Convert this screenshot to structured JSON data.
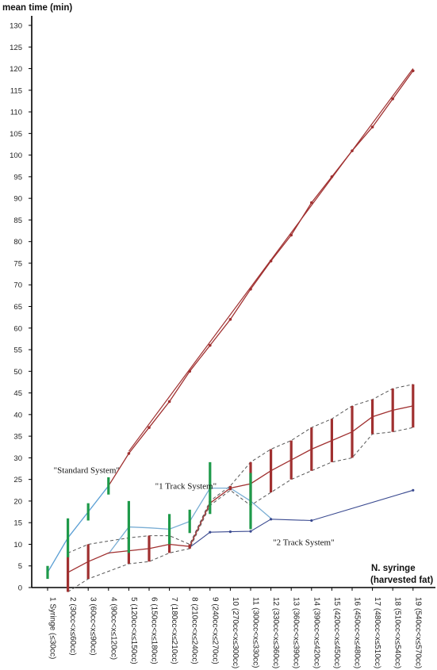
{
  "chart_data": {
    "type": "line",
    "ylabel": "mean time (min)",
    "xlabel": [
      "N. syringe",
      "(harvested fat)"
    ],
    "ylim": [
      0,
      130
    ],
    "yticks": [
      0,
      5,
      10,
      15,
      20,
      25,
      30,
      35,
      40,
      45,
      50,
      55,
      60,
      65,
      70,
      75,
      80,
      85,
      90,
      95,
      100,
      105,
      110,
      115,
      120,
      125,
      130
    ],
    "categories": [
      "1 Syringe (≤30cc)",
      "2 (30cc<x≤60cc)",
      "3 (60cc<x≤90cc)",
      "4 (90cc<x≤120cc)",
      "5 (120cc<x≤150cc)",
      "6 (150cc<x≤180cc)",
      "7 (180cc<x≤210cc)",
      "8 (210cc<x≤240cc)",
      "9 (240cc<x≤270cc)",
      "10 (270cc<x≤300cc)",
      "11 (300cc<x≤330cc)",
      "12 (330cc<x≤360cc)",
      "13 (360cc<x≤390cc)",
      "14 (390cc<x≤420cc)",
      "15 (420cc<x≤450cc)",
      "16 (450cc<x≤480cc)",
      "17 (480cc<x≤510cc)",
      "18 (510cc<x≤540cc)",
      "19 (540cc<x≤570cc)"
    ],
    "annotations": [
      {
        "text": "\"Standard System\"",
        "x": 1.3,
        "y": 26.5
      },
      {
        "text": "\"1 Track System\"",
        "x": 6.3,
        "y": 22.8
      },
      {
        "text": "\"2 Track System\"",
        "x": 12.1,
        "y": 9.8
      }
    ],
    "series": [
      {
        "id": "standard",
        "x": [
          1,
          2,
          3,
          4,
          5,
          6,
          7,
          8,
          9,
          10,
          11,
          12,
          13,
          14,
          15,
          16,
          17,
          18,
          19
        ],
        "values": [
          3.5,
          11.5,
          17.5,
          23.5,
          31,
          37,
          43,
          50,
          56,
          62,
          69,
          75.5,
          81.5,
          89,
          95,
          101,
          106.5,
          113,
          119.5
        ],
        "error": [
          1.5,
          4.5,
          2,
          2,
          null,
          null,
          null,
          null,
          null,
          null,
          null,
          null,
          null,
          null,
          null,
          null,
          null,
          null,
          null
        ],
        "bar_color": "#1e9a4a",
        "color_early": "#5a9fd4",
        "color_late": "#a03030",
        "upper_line": [
          [
            5,
            31.5
          ],
          [
            19,
            120
          ]
        ]
      },
      {
        "id": "one_track",
        "x": [
          4,
          5,
          6,
          7,
          8,
          9,
          10,
          11,
          12
        ],
        "values": [
          7.8,
          14,
          13.8,
          13.5,
          15.3,
          23,
          23,
          20,
          16
        ],
        "error": [
          null,
          6,
          null,
          3.5,
          2.7,
          6,
          null,
          6.5,
          null
        ],
        "color": "#7aaed4",
        "bar_color": "#1e9a4a"
      },
      {
        "id": "two_track",
        "x": [
          2,
          3,
          4,
          5,
          6,
          7,
          8,
          9,
          10,
          11,
          12,
          13,
          14,
          15,
          16,
          17,
          18,
          19
        ],
        "values": [
          3.5,
          6,
          8,
          8.5,
          9,
          10,
          9.5,
          19.5,
          23,
          24,
          27,
          29.5,
          32,
          34,
          36,
          39.5,
          41,
          42
        ],
        "error": [
          4.5,
          4,
          null,
          3,
          3,
          2,
          0.5,
          0.5,
          0.5,
          5,
          5,
          4.5,
          5,
          5,
          6,
          4,
          5,
          5
        ],
        "color": "#a03030",
        "band_color": "#555555"
      },
      {
        "id": "two_track_lower",
        "x": [
          8,
          9,
          10,
          11,
          12,
          14,
          19
        ],
        "values": [
          9.3,
          12.8,
          12.9,
          13,
          15.8,
          15.5,
          22.5
        ],
        "color": "#3a4a90"
      }
    ]
  }
}
